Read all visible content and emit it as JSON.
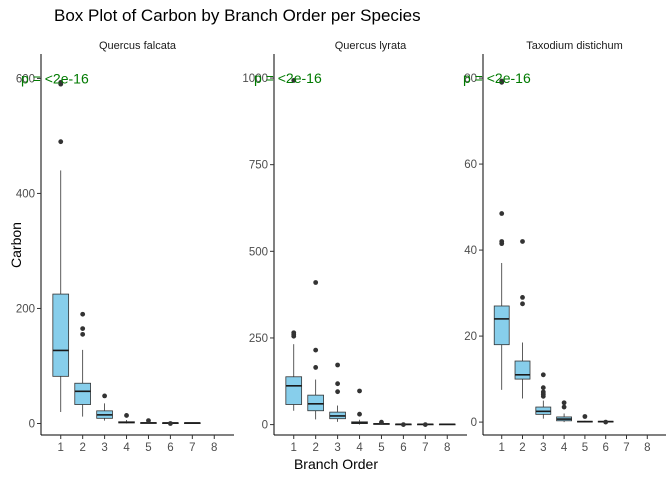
{
  "chart_data": {
    "type": "box",
    "title": "Box Plot of Carbon by Branch Order per Species",
    "xlabel": "Branch Order",
    "ylabel": "Carbon",
    "categories": [
      "1",
      "2",
      "3",
      "4",
      "5",
      "6",
      "7",
      "8"
    ],
    "box_fill": "#87CEEB",
    "annotation_color": "#007A00",
    "grid": false,
    "panels": [
      {
        "species": "Quercus falcata",
        "annotation": "p = <2e-16",
        "ylim": [
          -20,
          632
        ],
        "yticks": [
          0,
          200,
          400,
          600
        ],
        "boxes": [
          {
            "order": "1",
            "whisker_low": 20,
            "q1": 82,
            "median": 127,
            "q3": 225,
            "whisker_high": 440,
            "outliers": [
              490,
              590,
              593
            ]
          },
          {
            "order": "2",
            "whisker_low": 12,
            "q1": 33,
            "median": 56,
            "q3": 70,
            "whisker_high": 128,
            "outliers": [
              155,
              165,
              190
            ]
          },
          {
            "order": "3",
            "whisker_low": 5,
            "q1": 9,
            "median": 15,
            "q3": 22,
            "whisker_high": 35,
            "outliers": [
              48
            ]
          },
          {
            "order": "4",
            "whisker_low": 0,
            "q1": 1,
            "median": 2,
            "q3": 3,
            "whisker_high": 6,
            "outliers": [
              14
            ]
          },
          {
            "order": "5",
            "whisker_low": 0,
            "q1": 0.5,
            "median": 1,
            "q3": 1.5,
            "whisker_high": 2,
            "outliers": [
              5
            ]
          },
          {
            "order": "6",
            "whisker_low": 0,
            "q1": 0.5,
            "median": 1,
            "q3": 1.2,
            "whisker_high": 1.5,
            "outliers": [
              0
            ]
          },
          {
            "order": "7",
            "whisker_low": 0,
            "q1": 0.5,
            "median": 1,
            "q3": 1.2,
            "whisker_high": 1.5,
            "outliers": []
          }
        ]
      },
      {
        "species": "Quercus lyrata",
        "annotation": "p = <2e-16",
        "ylim": [
          -30,
          1052
        ],
        "yticks": [
          0,
          250,
          500,
          750,
          1000
        ],
        "boxes": [
          {
            "order": "1",
            "whisker_low": 40,
            "q1": 58,
            "median": 112,
            "q3": 138,
            "whisker_high": 232,
            "outliers": [
              255,
              260,
              265,
              993
            ]
          },
          {
            "order": "2",
            "whisker_low": 15,
            "q1": 40,
            "median": 60,
            "q3": 85,
            "whisker_high": 130,
            "outliers": [
              165,
              215,
              410
            ]
          },
          {
            "order": "3",
            "whisker_low": 8,
            "q1": 17,
            "median": 25,
            "q3": 36,
            "whisker_high": 55,
            "outliers": [
              95,
              118,
              172
            ]
          },
          {
            "order": "4",
            "whisker_low": 0,
            "q1": 3,
            "median": 5,
            "q3": 8,
            "whisker_high": 14,
            "outliers": [
              30,
              97
            ]
          },
          {
            "order": "5",
            "whisker_low": 0,
            "q1": 1,
            "median": 2,
            "q3": 3,
            "whisker_high": 4,
            "outliers": [
              7
            ]
          },
          {
            "order": "6",
            "whisker_low": 0,
            "q1": 0.5,
            "median": 1,
            "q3": 1.5,
            "whisker_high": 2,
            "outliers": [
              0
            ]
          },
          {
            "order": "7",
            "whisker_low": 0,
            "q1": 0.5,
            "median": 1,
            "q3": 1.5,
            "whisker_high": 2,
            "outliers": [
              0
            ]
          },
          {
            "order": "8",
            "whisker_low": 0,
            "q1": 0.5,
            "median": 1,
            "q3": 1.5,
            "whisker_high": 2,
            "outliers": []
          }
        ]
      },
      {
        "species": "Taxodium distichum",
        "annotation": "p = <2e-16",
        "ylim": [
          -3,
          84.2
        ],
        "yticks": [
          0,
          20,
          40,
          60,
          80
        ],
        "boxes": [
          {
            "order": "1",
            "whisker_low": 7.5,
            "q1": 18,
            "median": 24,
            "q3": 27,
            "whisker_high": 37,
            "outliers": [
              41.5,
              42,
              48.5,
              79,
              79.3
            ]
          },
          {
            "order": "2",
            "whisker_low": 5.5,
            "q1": 10,
            "median": 11,
            "q3": 14.2,
            "whisker_high": 18.5,
            "outliers": [
              27.5,
              29,
              42
            ]
          },
          {
            "order": "3",
            "whisker_low": 0.8,
            "q1": 1.8,
            "median": 2.5,
            "q3": 3.5,
            "whisker_high": 5,
            "outliers": [
              6,
              6.5,
              7,
              8,
              11
            ]
          },
          {
            "order": "4",
            "whisker_low": 0,
            "q1": 0.3,
            "median": 0.7,
            "q3": 1.2,
            "whisker_high": 2,
            "outliers": [
              3.5,
              4.5
            ]
          },
          {
            "order": "5",
            "whisker_low": 0,
            "q1": 0.05,
            "median": 0.1,
            "q3": 0.2,
            "whisker_high": 0.3,
            "outliers": [
              1.3
            ]
          },
          {
            "order": "6",
            "whisker_low": 0,
            "q1": 0.05,
            "median": 0.1,
            "q3": 0.2,
            "whisker_high": 0.3,
            "outliers": [
              0
            ]
          }
        ]
      }
    ]
  }
}
